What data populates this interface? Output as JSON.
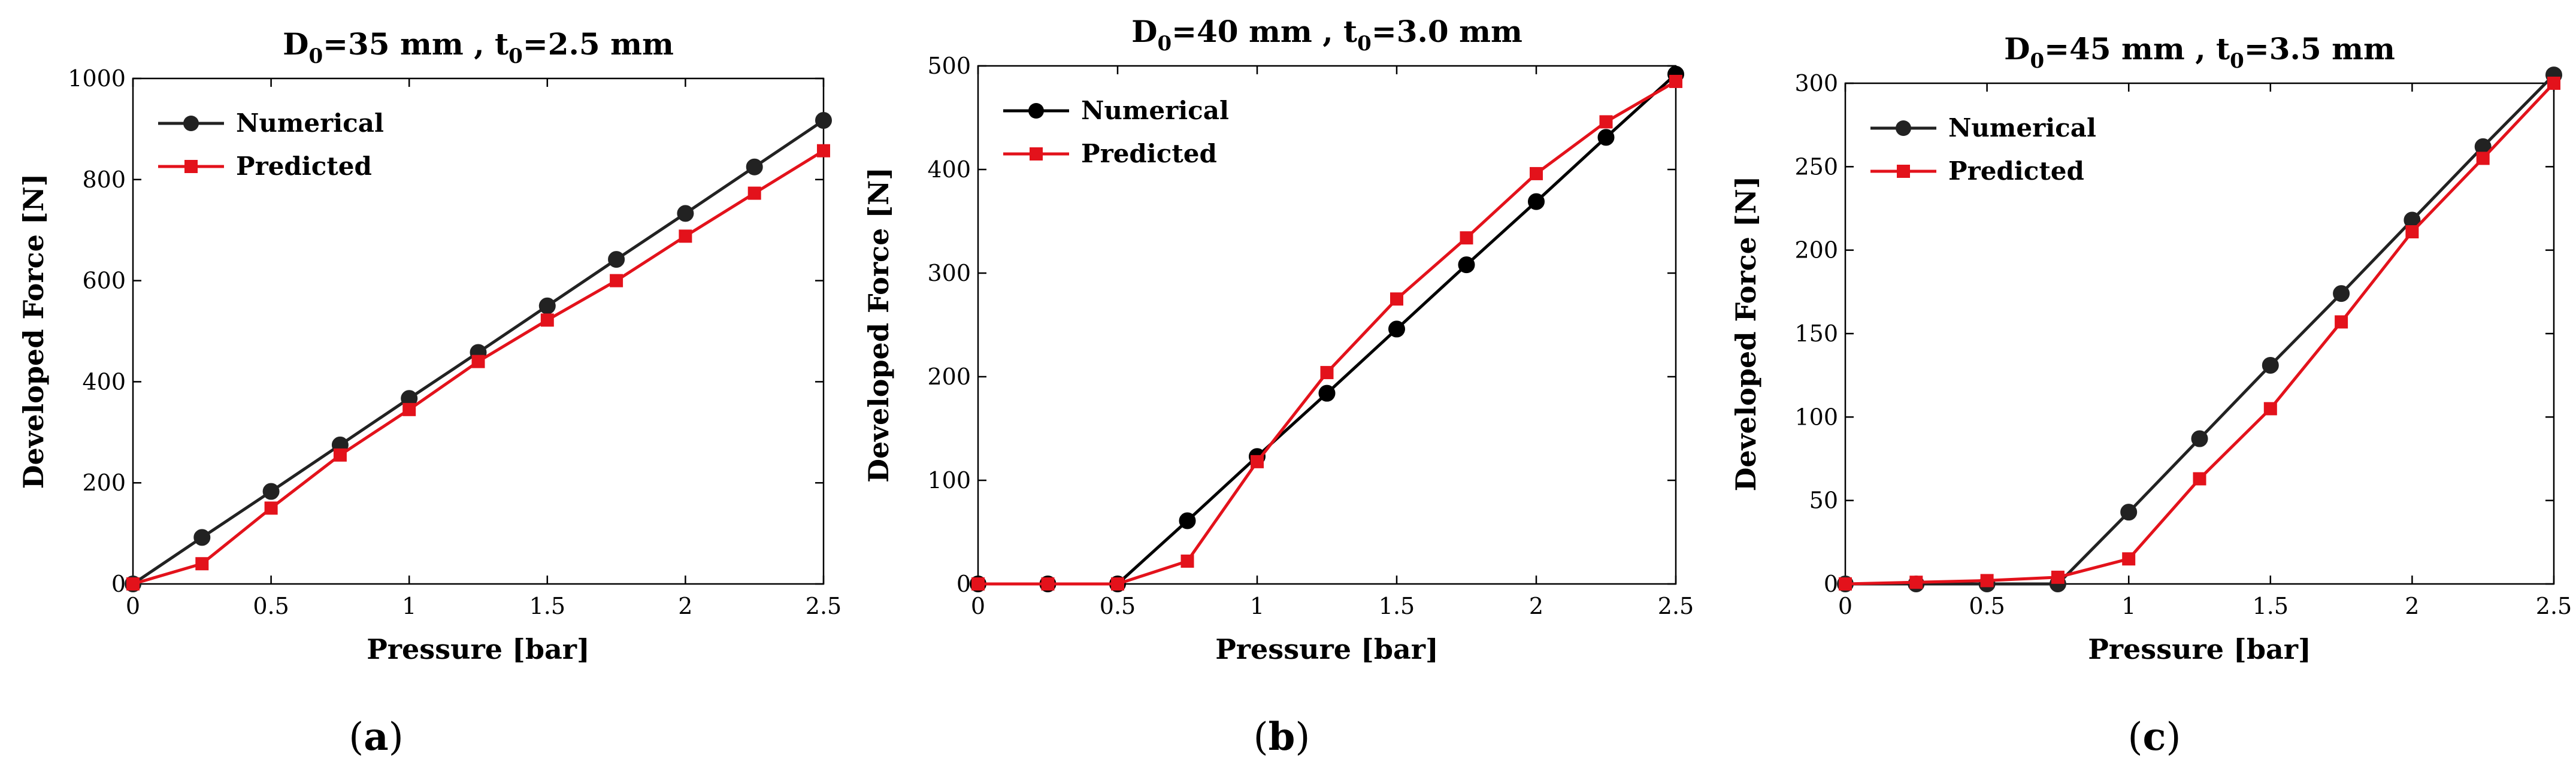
{
  "chart_data": [
    {
      "type": "line",
      "title": "D0=35 mm , t0=2.5 mm",
      "title_parts": {
        "var1": "D",
        "sub1": "0",
        "val1": "=35 mm , ",
        "var2": "t",
        "sub2": "0",
        "val2": "=2.5 mm"
      },
      "xlabel": "Pressure [bar]",
      "ylabel": "Developed Force [N]",
      "xlim": [
        0,
        2.5
      ],
      "ylim": [
        0,
        1000
      ],
      "xticks": [
        0,
        0.5,
        1,
        1.5,
        2,
        2.5
      ],
      "xtick_labels": [
        "0",
        "0.5",
        "1",
        "1.5",
        "2",
        "2.5"
      ],
      "yticks": [
        0,
        200,
        400,
        600,
        800,
        1000
      ],
      "ytick_labels": [
        "0",
        "200",
        "400",
        "600",
        "800",
        "1000"
      ],
      "caption": {
        "prefix": "(",
        "letter": "a",
        "suffix": ")"
      },
      "x": [
        0,
        0.25,
        0.5,
        0.75,
        1,
        1.25,
        1.5,
        1.75,
        2,
        2.25,
        2.5
      ],
      "series": [
        {
          "name": "Numerical",
          "color": "#222222",
          "marker": "circle",
          "values": [
            0,
            92,
            183,
            275,
            367,
            458,
            550,
            642,
            733,
            825,
            917
          ]
        },
        {
          "name": "Predicted",
          "color": "#e3121b",
          "marker": "square",
          "values": [
            0,
            40,
            150,
            255,
            345,
            440,
            522,
            600,
            688,
            773,
            857
          ]
        }
      ]
    },
    {
      "type": "line",
      "title": "D0=40 mm , t0=3.0 mm",
      "title_parts": {
        "var1": "D",
        "sub1": "0",
        "val1": "=40 mm , ",
        "var2": "t",
        "sub2": "0",
        "val2": "=3.0 mm"
      },
      "xlabel": "Pressure [bar]",
      "ylabel": "Developed Force [N]",
      "xlim": [
        0,
        2.5
      ],
      "ylim": [
        0,
        500
      ],
      "xticks": [
        0,
        0.5,
        1,
        1.5,
        2,
        2.5
      ],
      "xtick_labels": [
        "0",
        "0.5",
        "1",
        "1.5",
        "2",
        "2.5"
      ],
      "yticks": [
        0,
        100,
        200,
        300,
        400,
        500
      ],
      "ytick_labels": [
        "0",
        "100",
        "200",
        "300",
        "400",
        "500"
      ],
      "caption": {
        "prefix": "(",
        "letter": "b",
        "suffix": ")"
      },
      "x": [
        0,
        0.25,
        0.5,
        0.75,
        1,
        1.25,
        1.5,
        1.75,
        2,
        2.25,
        2.5
      ],
      "series": [
        {
          "name": "Numerical",
          "color": "#000000",
          "marker": "circle",
          "values": [
            0,
            0,
            0,
            61,
            123,
            184,
            246,
            308,
            369,
            431,
            492
          ]
        },
        {
          "name": "Predicted",
          "color": "#e3121b",
          "marker": "square",
          "values": [
            0,
            0,
            0,
            22,
            118,
            204,
            275,
            334,
            396,
            446,
            485
          ]
        }
      ]
    },
    {
      "type": "line",
      "title": "D0=45 mm , t0=3.5 mm",
      "title_parts": {
        "var1": "D",
        "sub1": "0",
        "val1": "=45 mm , ",
        "var2": "t",
        "sub2": "0",
        "val2": "=3.5 mm"
      },
      "xlabel": "Pressure [bar]",
      "ylabel": "Developed Force [N]",
      "xlim": [
        0,
        2.5
      ],
      "ylim": [
        0,
        300
      ],
      "xticks": [
        0,
        0.5,
        1,
        1.5,
        2,
        2.5
      ],
      "xtick_labels": [
        "0",
        "0.5",
        "1",
        "1.5",
        "2",
        "2.5"
      ],
      "yticks": [
        0,
        50,
        100,
        150,
        200,
        250,
        300
      ],
      "ytick_labels": [
        "0",
        "50",
        "100",
        "150",
        "200",
        "250",
        "300"
      ],
      "caption": {
        "prefix": "(",
        "letter": "c",
        "suffix": ")"
      },
      "x": [
        0,
        0.25,
        0.5,
        0.75,
        1,
        1.25,
        1.5,
        1.75,
        2,
        2.25,
        2.5
      ],
      "series": [
        {
          "name": "Numerical",
          "color": "#222222",
          "marker": "circle",
          "values": [
            0,
            0,
            0,
            0,
            43,
            87,
            131,
            174,
            218,
            262,
            305
          ]
        },
        {
          "name": "Predicted",
          "color": "#e3121b",
          "marker": "square",
          "values": [
            0,
            1,
            2,
            4,
            15,
            63,
            105,
            157,
            211,
            255,
            300
          ]
        }
      ]
    }
  ]
}
